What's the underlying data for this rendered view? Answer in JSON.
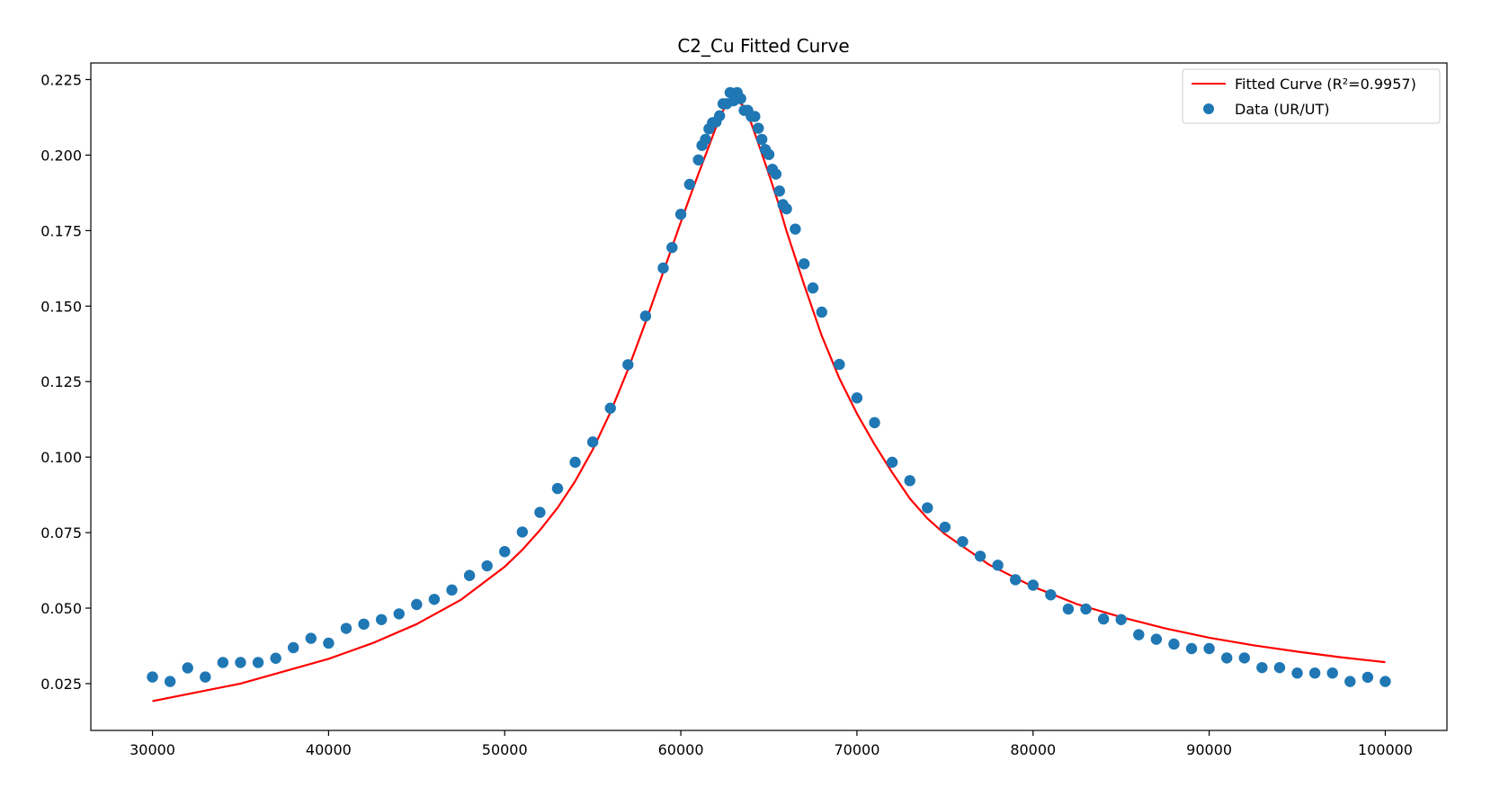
{
  "chart_data": {
    "type": "scatter",
    "title": "C2_Cu Fitted Curve",
    "xlabel": "",
    "ylabel": "",
    "xlim": [
      26500,
      103500
    ],
    "ylim": [
      0.0095,
      0.2305
    ],
    "grid": false,
    "legend_placement": "top-right",
    "xticks": [
      {
        "value": 30000,
        "label": "30000"
      },
      {
        "value": 40000,
        "label": "40000"
      },
      {
        "value": 50000,
        "label": "50000"
      },
      {
        "value": 60000,
        "label": "60000"
      },
      {
        "value": 70000,
        "label": "70000"
      },
      {
        "value": 80000,
        "label": "80000"
      },
      {
        "value": 90000,
        "label": "90000"
      },
      {
        "value": 100000,
        "label": "100000"
      }
    ],
    "yticks": [
      {
        "value": 0.025,
        "label": "0.025"
      },
      {
        "value": 0.05,
        "label": "0.050"
      },
      {
        "value": 0.075,
        "label": "0.075"
      },
      {
        "value": 0.1,
        "label": "0.100"
      },
      {
        "value": 0.125,
        "label": "0.125"
      },
      {
        "value": 0.15,
        "label": "0.150"
      },
      {
        "value": 0.175,
        "label": "0.175"
      },
      {
        "value": 0.2,
        "label": "0.200"
      },
      {
        "value": 0.225,
        "label": "0.225"
      }
    ],
    "legend": [
      {
        "label": "Fitted Curve (R²=0.9957)",
        "kind": "line",
        "color": "#ff0000"
      },
      {
        "label": "Data (UR/UT)",
        "kind": "marker",
        "color": "#1f77b4"
      }
    ],
    "series": [
      {
        "name": "Fitted Curve (R²=0.9957)",
        "kind": "line",
        "color": "#ff0000",
        "x": [
          30000,
          35000,
          40000,
          42500,
          45000,
          47500,
          50000,
          51000,
          52000,
          53000,
          54000,
          55000,
          56000,
          57000,
          58000,
          59000,
          60000,
          60500,
          61000,
          61500,
          62000,
          62500,
          63000,
          63500,
          64000,
          64500,
          65000,
          65500,
          66000,
          67000,
          68000,
          69000,
          70000,
          71000,
          72000,
          73000,
          74000,
          75000,
          77500,
          80000,
          82500,
          85000,
          87500,
          90000,
          92500,
          95000,
          97500,
          100000
        ],
        "y": [
          0.0192,
          0.025,
          0.0332,
          0.0384,
          0.0447,
          0.0527,
          0.0637,
          0.0693,
          0.0758,
          0.0832,
          0.092,
          0.1025,
          0.1148,
          0.129,
          0.1447,
          0.1612,
          0.1778,
          0.1859,
          0.1938,
          0.2015,
          0.2093,
          0.216,
          0.2187,
          0.2166,
          0.2105,
          0.2022,
          0.1937,
          0.1848,
          0.1749,
          0.1571,
          0.1402,
          0.1261,
          0.1144,
          0.1042,
          0.0949,
          0.0863,
          0.0797,
          0.0745,
          0.0644,
          0.0571,
          0.0513,
          0.047,
          0.0433,
          0.0402,
          0.0377,
          0.0356,
          0.0337,
          0.0321
        ]
      },
      {
        "name": "Data (UR/UT)",
        "kind": "scatter",
        "color": "#1f77b4",
        "x": [
          30000,
          31000,
          32000,
          33000,
          34000,
          35000,
          36000,
          37000,
          38000,
          39000,
          40000,
          41000,
          42000,
          43000,
          44000,
          45000,
          46000,
          47000,
          48000,
          49000,
          50000,
          51000,
          52000,
          53000,
          54000,
          55000,
          56000,
          57000,
          58000,
          59000,
          59500,
          60000,
          60500,
          61000,
          61200,
          61400,
          61600,
          61800,
          62000,
          62200,
          62400,
          62600,
          62800,
          63000,
          63200,
          63400,
          63600,
          63800,
          64000,
          64200,
          64400,
          64600,
          64800,
          65000,
          65200,
          65400,
          65600,
          65800,
          66000,
          66500,
          67000,
          67500,
          68000,
          69000,
          70000,
          71000,
          72000,
          73000,
          74000,
          75000,
          76000,
          77000,
          78000,
          79000,
          80000,
          81000,
          82000,
          83000,
          84000,
          85000,
          86000,
          87000,
          88000,
          89000,
          90000,
          91000,
          92000,
          93000,
          94000,
          95000,
          96000,
          97000,
          98000,
          99000,
          100000
        ],
        "y": [
          0.0272,
          0.0257,
          0.0302,
          0.0272,
          0.032,
          0.032,
          0.032,
          0.0334,
          0.0369,
          0.04,
          0.0384,
          0.0433,
          0.0447,
          0.0462,
          0.0481,
          0.0512,
          0.0529,
          0.056,
          0.0608,
          0.064,
          0.0687,
          0.0752,
          0.0817,
          0.0896,
          0.0983,
          0.105,
          0.1162,
          0.1306,
          0.1467,
          0.1626,
          0.1694,
          0.1804,
          0.1903,
          0.1984,
          0.2032,
          0.2052,
          0.2087,
          0.2107,
          0.211,
          0.213,
          0.217,
          0.217,
          0.2207,
          0.218,
          0.2207,
          0.2187,
          0.2148,
          0.2148,
          0.2128,
          0.2128,
          0.2089,
          0.2052,
          0.2018,
          0.2002,
          0.1953,
          0.1937,
          0.1881,
          0.1836,
          0.1822,
          0.1755,
          0.164,
          0.156,
          0.148,
          0.1307,
          0.1196,
          0.1114,
          0.0983,
          0.0922,
          0.0832,
          0.0768,
          0.072,
          0.0672,
          0.0642,
          0.0594,
          0.0576,
          0.0544,
          0.0497,
          0.0497,
          0.0464,
          0.0462,
          0.0412,
          0.0397,
          0.0381,
          0.0366,
          0.0366,
          0.0335,
          0.0335,
          0.0303,
          0.0303,
          0.0285,
          0.0285,
          0.0285,
          0.0257,
          0.0271,
          0.0257
        ]
      }
    ]
  }
}
